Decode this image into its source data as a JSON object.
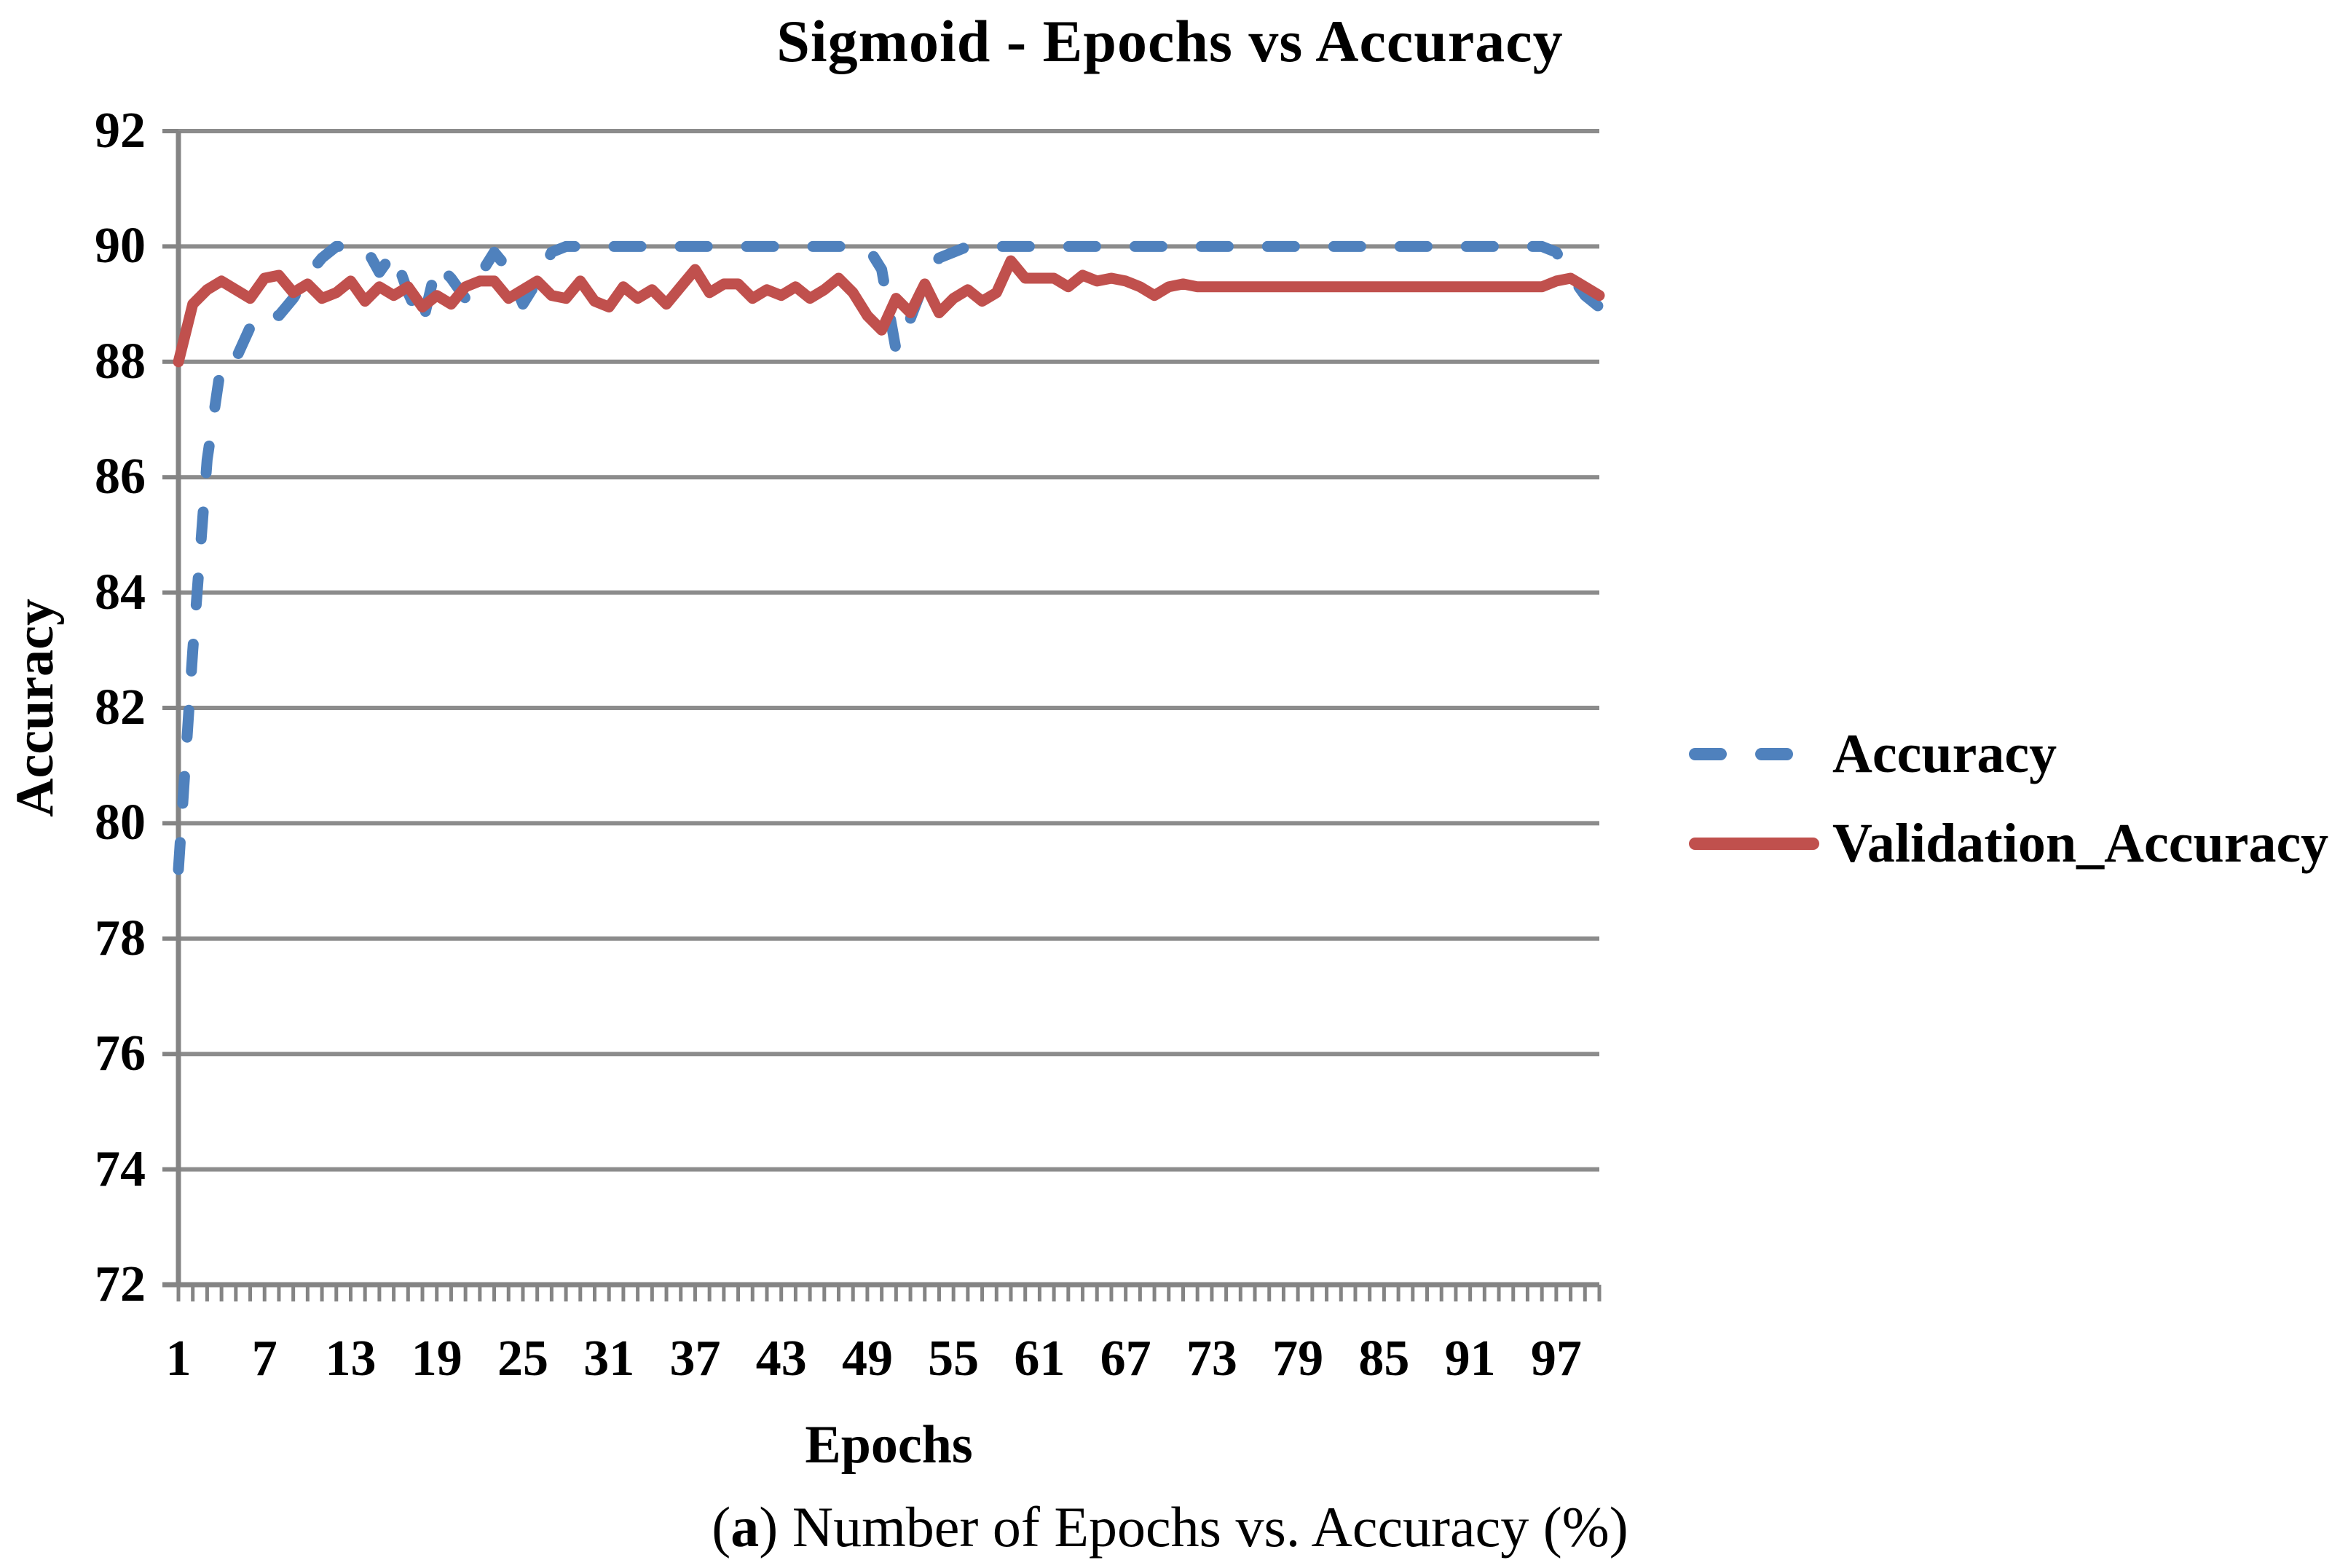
{
  "page": {
    "title": "Sigmoid - Epochs vs Accuracy",
    "caption": {
      "open": "(",
      "label": "a",
      "close": ") ",
      "text": "Number of Epochs vs. Accuracy (%)"
    }
  },
  "chart_data": {
    "type": "line",
    "title": "Sigmoid - Epochs vs Accuracy",
    "xlabel": "Epochs",
    "ylabel": "Accuracy",
    "xlim": [
      1,
      100
    ],
    "ylim": [
      72,
      92
    ],
    "y_ticks": [
      72,
      74,
      76,
      78,
      80,
      82,
      84,
      86,
      88,
      90,
      92
    ],
    "x_ticks": [
      1,
      7,
      13,
      19,
      25,
      31,
      37,
      43,
      49,
      55,
      61,
      67,
      73,
      79,
      85,
      91,
      97
    ],
    "x_minor_tick_every": 1,
    "grid": "horizontal",
    "legend_position": "center-right",
    "colors": {
      "grid": "#8C8C8C",
      "axis": "#848484",
      "text": "#000000",
      "background": "#FFFFFF"
    },
    "series": [
      {
        "name": "Accuracy",
        "color": "#4F81BD",
        "line_style": "dashed",
        "x_start": 1,
        "values": [
          79.2,
          83,
          86.3,
          88,
          88.05,
          88.6,
          88.9,
          88.8,
          89.1,
          89.5,
          89.8,
          90,
          90,
          90,
          89.55,
          89.9,
          89.2,
          88.65,
          89.7,
          89.45,
          89.1,
          89.5,
          89.9,
          89.6,
          89,
          89.4,
          89.9,
          90,
          90,
          90,
          90,
          90,
          90,
          90,
          90,
          90,
          90,
          90,
          90,
          90,
          90,
          90,
          90,
          90,
          90,
          90,
          90,
          90,
          90,
          89.6,
          88.2,
          88.75,
          89.4,
          89.8,
          89.9,
          90,
          90,
          90,
          90,
          90,
          90,
          90,
          90,
          90,
          90,
          90,
          90,
          90,
          90,
          90,
          90,
          90,
          90,
          90,
          90,
          90,
          90,
          90,
          90,
          90,
          90,
          90,
          90,
          90,
          90,
          90,
          90,
          90,
          90,
          90,
          90,
          90,
          90,
          90,
          90,
          90,
          89.9,
          89.5,
          89.15,
          88.95
        ]
      },
      {
        "name": "Validation_Accuracy",
        "color": "#C0504D",
        "line_style": "solid",
        "x_start": 1,
        "values": [
          88,
          89,
          89.25,
          89.4,
          89.25,
          89.1,
          89.45,
          89.5,
          89.2,
          89.35,
          89.1,
          89.2,
          89.4,
          89.05,
          89.3,
          89.15,
          89.3,
          88.95,
          89.15,
          89,
          89.3,
          89.4,
          89.4,
          89.1,
          89.25,
          89.4,
          89.15,
          89.1,
          89.4,
          89.05,
          88.95,
          89.3,
          89.1,
          89.25,
          89,
          89.3,
          89.6,
          89.2,
          89.35,
          89.35,
          89.1,
          89.25,
          89.15,
          89.3,
          89.1,
          89.25,
          89.45,
          89.2,
          88.8,
          88.55,
          89.1,
          88.85,
          89.35,
          88.85,
          89.1,
          89.25,
          89.05,
          89.2,
          89.75,
          89.45,
          89.45,
          89.45,
          89.3,
          89.5,
          89.4,
          89.45,
          89.4,
          89.3,
          89.15,
          89.3,
          89.35,
          89.3,
          89.3,
          89.3,
          89.3,
          89.3,
          89.3,
          89.3,
          89.3,
          89.3,
          89.3,
          89.3,
          89.3,
          89.3,
          89.3,
          89.3,
          89.3,
          89.3,
          89.3,
          89.3,
          89.3,
          89.3,
          89.3,
          89.3,
          89.3,
          89.3,
          89.4,
          89.45,
          89.3,
          89.15
        ]
      }
    ]
  }
}
